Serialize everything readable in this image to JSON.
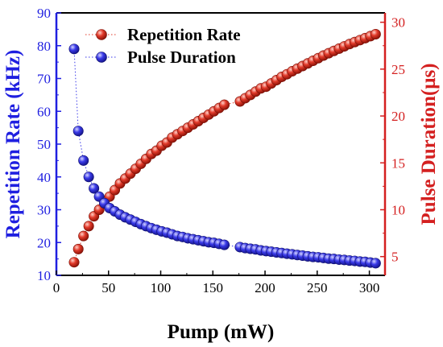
{
  "chart_data": {
    "type": "scatter",
    "xlabel": "Pump (mW)",
    "ylabel_left": "Repetition Rate (kHz)",
    "ylabel_right": "Pulse Duration(μs)",
    "xlim": [
      0,
      315
    ],
    "ylim_left": [
      10,
      90
    ],
    "ylim_right": [
      3,
      31
    ],
    "xticks": [
      0,
      50,
      100,
      150,
      200,
      250,
      300
    ],
    "yticks_left": [
      10,
      20,
      30,
      40,
      50,
      60,
      70,
      80,
      90
    ],
    "yticks_right": [
      5,
      10,
      15,
      20,
      25,
      30
    ],
    "legend_position": "top-left",
    "colors": {
      "left_axis": "#1f1fe0",
      "right_axis": "#d42020",
      "repetition_marker": "#e23a2a",
      "pulse_marker": "#3a3ae8"
    },
    "series": [
      {
        "name": "Repetition Rate",
        "axis": "left",
        "color": "#e23a2a",
        "line_style": "dotted",
        "x": [
          17,
          21,
          26,
          31,
          36,
          41,
          46,
          51,
          56,
          61,
          66,
          71,
          76,
          81,
          86,
          91,
          96,
          101,
          106,
          111,
          116,
          121,
          126,
          131,
          136,
          141,
          146,
          151,
          156,
          161,
          176,
          181,
          186,
          191,
          196,
          201,
          206,
          211,
          216,
          221,
          226,
          231,
          236,
          241,
          246,
          251,
          256,
          261,
          266,
          271,
          276,
          281,
          286,
          291,
          296,
          301,
          306
        ],
        "y": [
          14,
          18,
          22,
          25,
          28,
          30,
          32,
          34,
          36,
          38,
          39.5,
          41,
          42.5,
          44,
          45.5,
          47,
          48,
          49.5,
          50.5,
          52,
          53,
          54,
          55,
          56,
          57,
          58,
          59,
          60,
          61,
          62,
          63,
          64,
          65,
          66,
          67,
          67.5,
          68.5,
          69.5,
          70.5,
          71.3,
          72.2,
          73,
          73.8,
          74.6,
          75.4,
          76.2,
          77,
          77.7,
          78.4,
          79.1,
          79.8,
          80.5,
          81.1,
          81.7,
          82.3,
          82.9,
          83.5
        ]
      },
      {
        "name": "Pulse Duration",
        "axis": "left",
        "color": "#3a3ae8",
        "line_style": "dotted",
        "x": [
          17,
          21,
          26,
          31,
          36,
          41,
          46,
          51,
          56,
          61,
          66,
          71,
          76,
          81,
          86,
          91,
          96,
          101,
          106,
          111,
          116,
          121,
          126,
          131,
          136,
          141,
          146,
          151,
          156,
          161,
          176,
          181,
          186,
          191,
          196,
          201,
          206,
          211,
          216,
          221,
          226,
          231,
          236,
          241,
          246,
          251,
          256,
          261,
          266,
          271,
          276,
          281,
          286,
          291,
          296,
          301,
          306
        ],
        "y": [
          79,
          54,
          45,
          40,
          36.5,
          34,
          32,
          30.5,
          29.5,
          28.5,
          27.7,
          27,
          26.3,
          25.6,
          25,
          24.4,
          23.9,
          23.4,
          23,
          22.5,
          22,
          21.7,
          21.3,
          21,
          20.7,
          20.4,
          20.1,
          19.9,
          19.6,
          19.3,
          18.6,
          18.3,
          18.1,
          17.9,
          17.6,
          17.4,
          17.2,
          17,
          16.8,
          16.6,
          16.4,
          16.2,
          16,
          15.8,
          15.6,
          15.5,
          15.3,
          15.1,
          15,
          14.8,
          14.7,
          14.5,
          14.4,
          14.2,
          14.1,
          13.9,
          13.7
        ]
      }
    ]
  }
}
